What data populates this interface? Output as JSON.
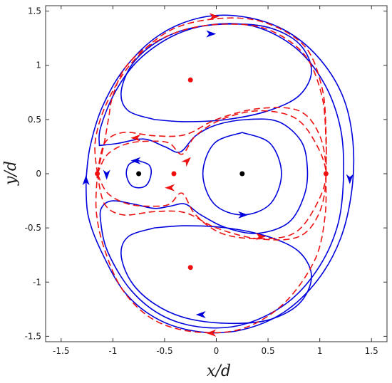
{
  "chart_data": {
    "type": "line",
    "title": "",
    "xlabel": "x/d",
    "ylabel": "y/d",
    "xlim": [
      -1.65,
      1.65
    ],
    "ylim": [
      -1.55,
      1.55
    ],
    "xticks": [
      -1.5,
      -1,
      -0.5,
      0,
      0.5,
      1,
      1.5
    ],
    "yticks": [
      -1.5,
      -1,
      -0.5,
      0,
      0.5,
      1,
      1.5
    ],
    "xtick_labels": [
      "-1.5",
      "-1",
      "-0.5",
      "0",
      "0.5",
      "1",
      "1.5"
    ],
    "ytick_labels": [
      "-1.5",
      "-1",
      "-0.5",
      "0",
      "0.5",
      "1",
      "1.5"
    ],
    "grid": false,
    "colors": {
      "solid": "#0000dd",
      "dashed": "#ee1111",
      "black_point": "#000000"
    },
    "black_points": [
      {
        "x": -0.75,
        "y": 0.0
      },
      {
        "x": 0.25,
        "y": 0.0
      }
    ],
    "red_points": [
      {
        "x": -1.15,
        "y": 0.0
      },
      {
        "x": -0.41,
        "y": 0.0
      },
      {
        "x": 1.06,
        "y": 0.0
      },
      {
        "x": -0.25,
        "y": 0.865
      },
      {
        "x": -0.25,
        "y": -0.865
      }
    ],
    "series": [
      {
        "style": "solid",
        "points": [
          [
            -1.26,
            -0.06
          ],
          [
            -1.22,
            0.25
          ],
          [
            -1.1,
            0.62
          ],
          [
            -0.88,
            0.98
          ],
          [
            -0.55,
            1.28
          ],
          [
            -0.15,
            1.44
          ],
          [
            0.25,
            1.45
          ],
          [
            0.65,
            1.33
          ],
          [
            0.98,
            1.08
          ],
          [
            1.22,
            0.72
          ],
          [
            1.32,
            0.3
          ],
          [
            1.31,
            -0.15
          ],
          [
            1.2,
            -0.6
          ],
          [
            0.98,
            -0.98
          ],
          [
            0.65,
            -1.28
          ],
          [
            0.25,
            -1.44
          ],
          [
            -0.15,
            -1.46
          ],
          [
            -0.55,
            -1.35
          ],
          [
            -0.88,
            -1.1
          ],
          [
            -1.12,
            -0.7
          ],
          [
            -1.24,
            -0.38
          ],
          [
            -1.26,
            -0.06
          ]
        ],
        "closed": true,
        "arrows": [
          {
            "at": [
              1.29,
              -0.05
            ],
            "dir": "down"
          },
          {
            "at": [
              -1.26,
              -0.06
            ],
            "dir": "up"
          }
        ]
      },
      {
        "style": "solid",
        "points": [
          [
            -1.13,
            0.26
          ],
          [
            -1.12,
            0.42
          ],
          [
            -0.98,
            0.75
          ],
          [
            -0.75,
            1.05
          ],
          [
            -0.4,
            1.28
          ],
          [
            0.0,
            1.38
          ],
          [
            0.4,
            1.35
          ],
          [
            0.78,
            1.15
          ],
          [
            1.05,
            0.82
          ],
          [
            1.2,
            0.42
          ],
          [
            1.23,
            0.0
          ],
          [
            1.18,
            -0.45
          ],
          [
            1.0,
            -0.85
          ],
          [
            0.7,
            -1.18
          ],
          [
            0.3,
            -1.38
          ],
          [
            -0.1,
            -1.42
          ],
          [
            -0.5,
            -1.32
          ],
          [
            -0.82,
            -1.08
          ],
          [
            -1.05,
            -0.72
          ],
          [
            -1.12,
            -0.42
          ],
          [
            -1.1,
            -0.3
          ],
          [
            -1.0,
            -0.25
          ],
          [
            -0.8,
            -0.28
          ],
          [
            -0.6,
            -0.32
          ],
          [
            -0.45,
            -0.3
          ],
          [
            -0.3,
            -0.28
          ],
          [
            -0.15,
            -0.38
          ],
          [
            0.1,
            -0.5
          ],
          [
            0.4,
            -0.55
          ],
          [
            0.7,
            -0.45
          ],
          [
            0.85,
            -0.2
          ],
          [
            0.88,
            0.05
          ],
          [
            0.82,
            0.3
          ],
          [
            0.6,
            0.48
          ],
          [
            0.3,
            0.5
          ],
          [
            0.0,
            0.45
          ],
          [
            -0.2,
            0.35
          ],
          [
            -0.35,
            0.2
          ],
          [
            -0.5,
            0.25
          ],
          [
            -0.7,
            0.32
          ],
          [
            -0.95,
            0.28
          ],
          [
            -1.13,
            0.26
          ]
        ],
        "closed": true,
        "arrows": [
          {
            "at": [
              -1.06,
              -0.01
            ],
            "dir": "down"
          }
        ]
      },
      {
        "style": "solid",
        "points": [
          [
            -0.6,
            0.5
          ],
          [
            -0.3,
            0.48
          ],
          [
            0.1,
            0.5
          ],
          [
            0.5,
            0.58
          ],
          [
            0.8,
            0.72
          ],
          [
            0.92,
            0.95
          ],
          [
            0.8,
            1.2
          ],
          [
            0.5,
            1.35
          ],
          [
            0.1,
            1.38
          ],
          [
            -0.3,
            1.33
          ],
          [
            -0.6,
            1.2
          ],
          [
            -0.82,
            1.0
          ],
          [
            -0.92,
            0.75
          ],
          [
            -0.85,
            0.58
          ],
          [
            -0.6,
            0.5
          ]
        ],
        "closed": true,
        "arrows": [
          {
            "at": [
              -0.05,
              1.29
            ],
            "dir": "right"
          }
        ]
      },
      {
        "style": "solid",
        "points": [
          [
            -0.6,
            -0.5
          ],
          [
            -0.3,
            -0.48
          ],
          [
            0.1,
            -0.5
          ],
          [
            0.5,
            -0.58
          ],
          [
            0.8,
            -0.72
          ],
          [
            0.92,
            -0.95
          ],
          [
            0.8,
            -1.2
          ],
          [
            0.5,
            -1.35
          ],
          [
            0.1,
            -1.38
          ],
          [
            -0.3,
            -1.33
          ],
          [
            -0.6,
            -1.2
          ],
          [
            -0.82,
            -1.0
          ],
          [
            -0.92,
            -0.75
          ],
          [
            -0.85,
            -0.58
          ],
          [
            -0.6,
            -0.5
          ]
        ],
        "closed": true,
        "arrows": [
          {
            "at": [
              -0.15,
              -1.3
            ],
            "dir": "left"
          }
        ]
      },
      {
        "style": "solid",
        "points": [
          [
            0.25,
            0.38
          ],
          [
            0.52,
            0.28
          ],
          [
            0.63,
            0.0
          ],
          [
            0.52,
            -0.28
          ],
          [
            0.25,
            -0.38
          ],
          [
            -0.02,
            -0.28
          ],
          [
            -0.13,
            0.0
          ],
          [
            -0.02,
            0.28
          ],
          [
            0.25,
            0.38
          ]
        ],
        "closed": true,
        "arrows": [
          {
            "at": [
              0.26,
              -0.38
            ],
            "dir": "right"
          }
        ]
      },
      {
        "style": "solid",
        "points": [
          [
            -0.75,
            0.12
          ],
          [
            -0.65,
            0.08
          ],
          [
            -0.63,
            0.0
          ],
          [
            -0.67,
            -0.1
          ],
          [
            -0.75,
            -0.13
          ],
          [
            -0.83,
            -0.1
          ],
          [
            -0.87,
            0.0
          ],
          [
            -0.84,
            0.09
          ],
          [
            -0.75,
            0.12
          ]
        ],
        "closed": true,
        "arrows": [
          {
            "at": [
              -0.78,
              0.12
            ],
            "dir": "left"
          }
        ]
      },
      {
        "style": "dashed",
        "points": [
          [
            -1.15,
            0.0
          ],
          [
            -1.17,
            0.3
          ],
          [
            -1.06,
            0.65
          ],
          [
            -0.82,
            1.02
          ],
          [
            -0.45,
            1.32
          ],
          [
            0.0,
            1.43
          ],
          [
            0.45,
            1.4
          ],
          [
            0.85,
            1.18
          ],
          [
            1.02,
            0.8
          ],
          [
            1.06,
            0.4
          ],
          [
            1.06,
            0.0
          ],
          [
            1.05,
            -0.4
          ],
          [
            0.95,
            -0.8
          ],
          [
            0.65,
            -1.2
          ],
          [
            0.25,
            -1.43
          ],
          [
            -0.2,
            -1.46
          ],
          [
            -0.6,
            -1.35
          ],
          [
            -0.9,
            -1.08
          ],
          [
            -1.08,
            -0.7
          ],
          [
            -1.16,
            -0.35
          ],
          [
            -1.15,
            0.0
          ]
        ],
        "closed": true,
        "arrows": [
          {
            "at": [
              -0.02,
              1.45
            ],
            "dir": "right"
          },
          {
            "at": [
              -0.05,
              -1.47
            ],
            "dir": "left"
          }
        ]
      },
      {
        "style": "dashed",
        "points": [
          [
            -1.15,
            0.0
          ],
          [
            -1.05,
            0.18
          ],
          [
            -0.85,
            0.28
          ],
          [
            -0.6,
            0.3
          ],
          [
            -0.45,
            0.28
          ],
          [
            -0.33,
            0.18
          ],
          [
            -0.2,
            0.35
          ],
          [
            0.05,
            0.5
          ],
          [
            0.4,
            0.58
          ],
          [
            0.75,
            0.52
          ],
          [
            0.95,
            0.3
          ],
          [
            1.06,
            0.0
          ],
          [
            0.96,
            -0.3
          ],
          [
            0.75,
            -0.55
          ],
          [
            0.4,
            -0.6
          ],
          [
            0.05,
            -0.55
          ],
          [
            -0.2,
            -0.38
          ],
          [
            -0.33,
            -0.18
          ],
          [
            -0.45,
            -0.28
          ],
          [
            -0.6,
            -0.3
          ],
          [
            -0.85,
            -0.28
          ],
          [
            -1.05,
            -0.18
          ],
          [
            -1.15,
            0.0
          ]
        ],
        "closed": true,
        "arrows": [
          {
            "at": [
              -0.28,
              0.12
            ],
            "dir": "up-right"
          },
          {
            "at": [
              -0.45,
              -0.13
            ],
            "dir": "left"
          },
          {
            "at": [
              0.43,
              -0.58
            ],
            "dir": "right"
          }
        ]
      },
      {
        "style": "dashed",
        "points": [
          [
            -1.15,
            0.0
          ],
          [
            -1.08,
            0.28
          ],
          [
            -0.9,
            0.38
          ],
          [
            -0.6,
            0.35
          ],
          [
            -0.3,
            0.36
          ],
          [
            0.0,
            0.5
          ],
          [
            0.4,
            0.6
          ],
          [
            0.8,
            0.58
          ],
          [
            1.0,
            0.35
          ],
          [
            1.06,
            0.0
          ],
          [
            1.0,
            -0.35
          ],
          [
            0.8,
            -0.58
          ],
          [
            0.4,
            -0.6
          ],
          [
            0.0,
            -0.5
          ],
          [
            -0.3,
            -0.36
          ],
          [
            -0.6,
            -0.35
          ],
          [
            -0.9,
            -0.38
          ],
          [
            -1.08,
            -0.28
          ],
          [
            -1.15,
            0.0
          ]
        ],
        "closed": true,
        "arrows": [
          {
            "at": [
              -0.78,
              0.33
            ],
            "dir": "left"
          }
        ]
      },
      {
        "style": "dashed",
        "points": [
          [
            -1.15,
            0.0
          ],
          [
            -1.08,
            0.3
          ],
          [
            -1.04,
            0.52
          ],
          [
            -1.0,
            0.72
          ],
          [
            -0.88,
            0.98
          ],
          [
            -0.65,
            1.18
          ],
          [
            -0.3,
            1.33
          ],
          [
            0.1,
            1.38
          ],
          [
            0.5,
            1.33
          ],
          [
            0.85,
            1.1
          ],
          [
            1.02,
            0.72
          ],
          [
            1.06,
            0.3
          ],
          [
            1.06,
            0.0
          ]
        ],
        "closed": false,
        "arrows": []
      }
    ]
  }
}
